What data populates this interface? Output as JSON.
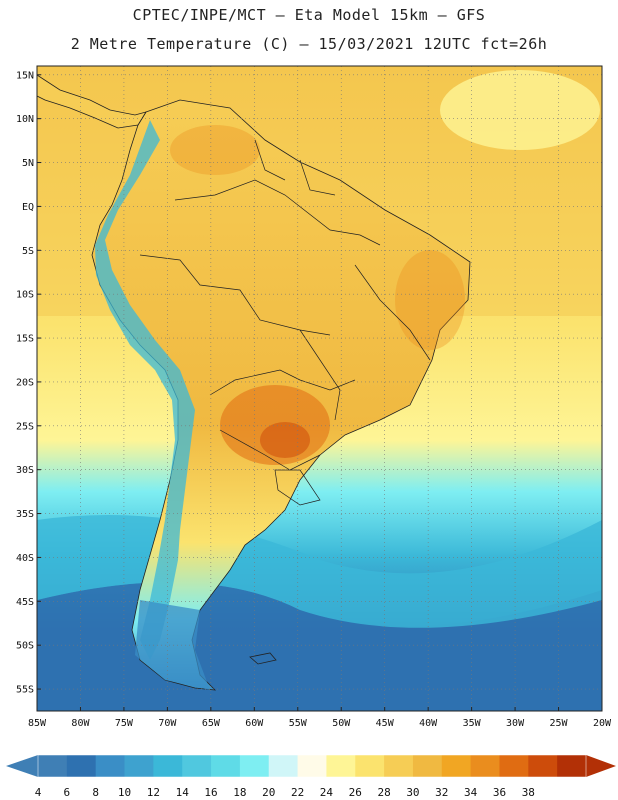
{
  "header": {
    "line1": "CPTEC/INPE/MCT –  Eta Model 15km – GFS",
    "line2": "2 Metre Temperature (C) – 15/03/2021 12UTC fct=26h"
  },
  "map": {
    "region": "South America",
    "lon_range": [
      -85,
      -20
    ],
    "lat_range": [
      -57.5,
      16
    ],
    "lat_ticks": [
      "15N",
      "10N",
      "5N",
      "EQ",
      "5S",
      "10S",
      "15S",
      "20S",
      "25S",
      "30S",
      "35S",
      "40S",
      "45S",
      "50S",
      "55S"
    ],
    "lon_ticks": [
      "85W",
      "80W",
      "75W",
      "70W",
      "65W",
      "60W",
      "55W",
      "50W",
      "45W",
      "40W",
      "35W",
      "30W",
      "25W",
      "20W"
    ]
  },
  "colorbar": {
    "labels": [
      "4",
      "6",
      "8",
      "10",
      "12",
      "14",
      "16",
      "18",
      "20",
      "22",
      "24",
      "26",
      "28",
      "30",
      "32",
      "34",
      "36",
      "38"
    ],
    "colors": [
      "#3f7fb5",
      "#2e71b0",
      "#3a8ec6",
      "#3ea2cf",
      "#3bb8d8",
      "#50c8df",
      "#5fdbe7",
      "#7eeef2",
      "#d0f6f8",
      "#fffbe8",
      "#fef596",
      "#fbe36e",
      "#f6cd55",
      "#f0b941",
      "#f1a623",
      "#ea8d1e",
      "#e06c12",
      "#cd4c0b",
      "#b23006"
    ],
    "under_color": "#3f7fb5",
    "over_color": "#b23006"
  }
}
